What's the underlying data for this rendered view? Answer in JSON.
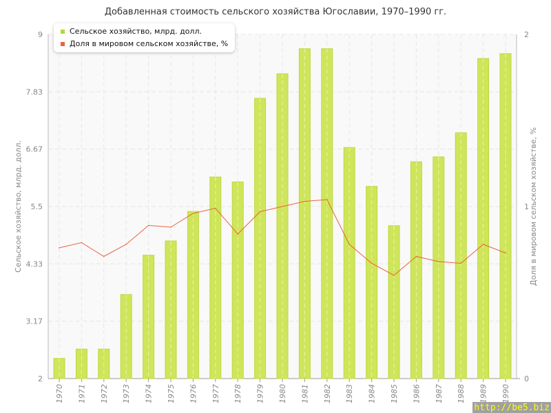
{
  "chart_data": {
    "type": "bar",
    "title": "Добавленная стоимость сельского хозяйства Югославии, 1970–1990 гг.",
    "categories": [
      "1970",
      "1971",
      "1972",
      "1973",
      "1974",
      "1975",
      "1976",
      "1977",
      "1978",
      "1979",
      "1980",
      "1981",
      "1982",
      "1983",
      "1984",
      "1985",
      "1986",
      "1987",
      "1988",
      "1989",
      "1990"
    ],
    "series": [
      {
        "name": "Сельское хозяйство, млрд. долл.",
        "type": "bar",
        "axis": "left",
        "color": "#c8e04a",
        "values": [
          2.41,
          2.6,
          2.6,
          3.71,
          4.51,
          4.8,
          5.4,
          6.1,
          6.0,
          7.7,
          8.2,
          8.71,
          8.71,
          6.7,
          5.91,
          5.11,
          6.41,
          6.51,
          7.0,
          8.51,
          8.61
        ]
      },
      {
        "name": "Доля в мировом сельском хозяйстве, %",
        "type": "line",
        "axis": "right",
        "color": "#e8643a",
        "values": [
          0.76,
          0.79,
          0.71,
          0.78,
          0.89,
          0.88,
          0.96,
          0.99,
          0.84,
          0.97,
          1.0,
          1.03,
          1.04,
          0.78,
          0.67,
          0.6,
          0.71,
          0.68,
          0.67,
          0.78,
          0.73
        ]
      }
    ],
    "ylabel": "Сельское хозяйство, млрд. долл.",
    "y2label": "Доля в мировом сельском хозяйстве, %",
    "ylim": [
      2,
      9
    ],
    "yticks": [
      "2",
      "3.17",
      "4.33",
      "5.5",
      "6.67",
      "7.83",
      "9"
    ],
    "y2lim": [
      0,
      2
    ],
    "y2ticks": [
      "0",
      "1",
      "2"
    ],
    "grid": true,
    "legend": "top-left"
  },
  "watermark": "http://be5.biz"
}
